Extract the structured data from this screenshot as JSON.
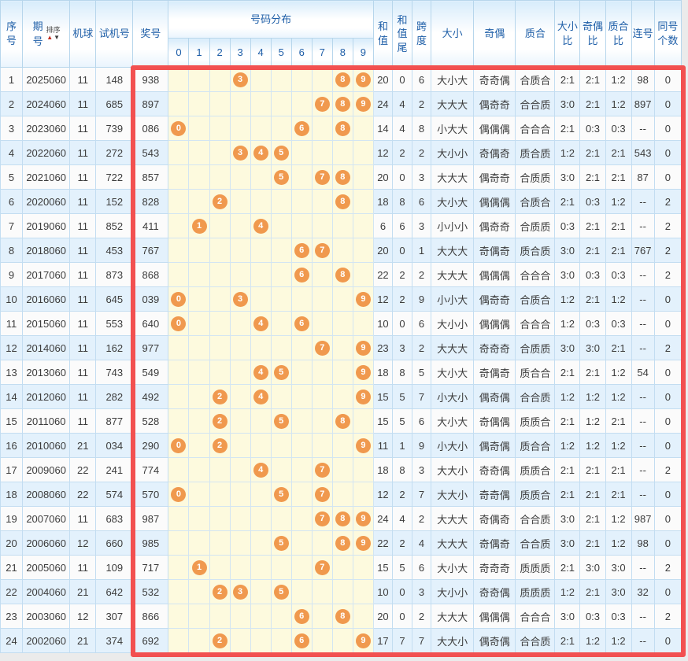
{
  "colors": {
    "accent_red_frame": "#f25050",
    "ball_orange": "#f0994e",
    "header_text_blue": "#1f5fa8",
    "row_alt_blue": "#e3f1fc",
    "digit_cell_yellow": "#fdfade"
  },
  "table": {
    "headers": {
      "seq": "序号",
      "period": "期号",
      "sort_label": "排序",
      "sort_up": "▲",
      "sort_down": "▼",
      "machine": "机球",
      "test": "试机号",
      "prize": "奖号",
      "distribution": "号码分布",
      "digits": [
        "0",
        "1",
        "2",
        "3",
        "4",
        "5",
        "6",
        "7",
        "8",
        "9"
      ],
      "sum": "和值",
      "sum_tail": "和值尾",
      "span": "跨度",
      "size": "大小",
      "parity": "奇偶",
      "prime": "质合",
      "size_ratio": "大小比",
      "parity_ratio": "奇偶比",
      "prime_ratio": "质合比",
      "consecutive": "连号",
      "same_count": "同号个数"
    },
    "rows": [
      {
        "seq": "1",
        "period": "2025060",
        "machine": "11",
        "test": "148",
        "prize": "938",
        "balls": [
          3,
          8,
          9
        ],
        "sum": "20",
        "sum_tail": "0",
        "span": "6",
        "size": "大小大",
        "parity": "奇奇偶",
        "prime": "合质合",
        "size_ratio": "2:1",
        "parity_ratio": "2:1",
        "prime_ratio": "1:2",
        "consecutive": "98",
        "same_count": "0"
      },
      {
        "seq": "2",
        "period": "2024060",
        "machine": "11",
        "test": "685",
        "prize": "897",
        "balls": [
          7,
          8,
          9
        ],
        "sum": "24",
        "sum_tail": "4",
        "span": "2",
        "size": "大大大",
        "parity": "偶奇奇",
        "prime": "合合质",
        "size_ratio": "3:0",
        "parity_ratio": "2:1",
        "prime_ratio": "1:2",
        "consecutive": "897",
        "same_count": "0"
      },
      {
        "seq": "3",
        "period": "2023060",
        "machine": "11",
        "test": "739",
        "prize": "086",
        "balls": [
          0,
          6,
          8
        ],
        "sum": "14",
        "sum_tail": "4",
        "span": "8",
        "size": "小大大",
        "parity": "偶偶偶",
        "prime": "合合合",
        "size_ratio": "2:1",
        "parity_ratio": "0:3",
        "prime_ratio": "0:3",
        "consecutive": "--",
        "same_count": "0"
      },
      {
        "seq": "4",
        "period": "2022060",
        "machine": "11",
        "test": "272",
        "prize": "543",
        "balls": [
          3,
          4,
          5
        ],
        "sum": "12",
        "sum_tail": "2",
        "span": "2",
        "size": "大小小",
        "parity": "奇偶奇",
        "prime": "质合质",
        "size_ratio": "1:2",
        "parity_ratio": "2:1",
        "prime_ratio": "2:1",
        "consecutive": "543",
        "same_count": "0"
      },
      {
        "seq": "5",
        "period": "2021060",
        "machine": "11",
        "test": "722",
        "prize": "857",
        "balls": [
          5,
          7,
          8
        ],
        "sum": "20",
        "sum_tail": "0",
        "span": "3",
        "size": "大大大",
        "parity": "偶奇奇",
        "prime": "合质质",
        "size_ratio": "3:0",
        "parity_ratio": "2:1",
        "prime_ratio": "2:1",
        "consecutive": "87",
        "same_count": "0"
      },
      {
        "seq": "6",
        "period": "2020060",
        "machine": "11",
        "test": "152",
        "prize": "828",
        "balls": [
          2,
          8
        ],
        "sum": "18",
        "sum_tail": "8",
        "span": "6",
        "size": "大小大",
        "parity": "偶偶偶",
        "prime": "合质合",
        "size_ratio": "2:1",
        "parity_ratio": "0:3",
        "prime_ratio": "1:2",
        "consecutive": "--",
        "same_count": "2"
      },
      {
        "seq": "7",
        "period": "2019060",
        "machine": "11",
        "test": "852",
        "prize": "411",
        "balls": [
          1,
          4
        ],
        "sum": "6",
        "sum_tail": "6",
        "span": "3",
        "size": "小小小",
        "parity": "偶奇奇",
        "prime": "合质质",
        "size_ratio": "0:3",
        "parity_ratio": "2:1",
        "prime_ratio": "2:1",
        "consecutive": "--",
        "same_count": "2"
      },
      {
        "seq": "8",
        "period": "2018060",
        "machine": "11",
        "test": "453",
        "prize": "767",
        "balls": [
          6,
          7
        ],
        "sum": "20",
        "sum_tail": "0",
        "span": "1",
        "size": "大大大",
        "parity": "奇偶奇",
        "prime": "质合质",
        "size_ratio": "3:0",
        "parity_ratio": "2:1",
        "prime_ratio": "2:1",
        "consecutive": "767",
        "same_count": "2"
      },
      {
        "seq": "9",
        "period": "2017060",
        "machine": "11",
        "test": "873",
        "prize": "868",
        "balls": [
          6,
          8
        ],
        "sum": "22",
        "sum_tail": "2",
        "span": "2",
        "size": "大大大",
        "parity": "偶偶偶",
        "prime": "合合合",
        "size_ratio": "3:0",
        "parity_ratio": "0:3",
        "prime_ratio": "0:3",
        "consecutive": "--",
        "same_count": "2"
      },
      {
        "seq": "10",
        "period": "2016060",
        "machine": "11",
        "test": "645",
        "prize": "039",
        "balls": [
          0,
          3,
          9
        ],
        "sum": "12",
        "sum_tail": "2",
        "span": "9",
        "size": "小小大",
        "parity": "偶奇奇",
        "prime": "合质合",
        "size_ratio": "1:2",
        "parity_ratio": "2:1",
        "prime_ratio": "1:2",
        "consecutive": "--",
        "same_count": "0"
      },
      {
        "seq": "11",
        "period": "2015060",
        "machine": "11",
        "test": "553",
        "prize": "640",
        "balls": [
          0,
          4,
          6
        ],
        "sum": "10",
        "sum_tail": "0",
        "span": "6",
        "size": "大小小",
        "parity": "偶偶偶",
        "prime": "合合合",
        "size_ratio": "1:2",
        "parity_ratio": "0:3",
        "prime_ratio": "0:3",
        "consecutive": "--",
        "same_count": "0"
      },
      {
        "seq": "12",
        "period": "2014060",
        "machine": "11",
        "test": "162",
        "prize": "977",
        "balls": [
          7,
          9
        ],
        "sum": "23",
        "sum_tail": "3",
        "span": "2",
        "size": "大大大",
        "parity": "奇奇奇",
        "prime": "合质质",
        "size_ratio": "3:0",
        "parity_ratio": "3:0",
        "prime_ratio": "2:1",
        "consecutive": "--",
        "same_count": "2"
      },
      {
        "seq": "13",
        "period": "2013060",
        "machine": "11",
        "test": "743",
        "prize": "549",
        "balls": [
          4,
          5,
          9
        ],
        "sum": "18",
        "sum_tail": "8",
        "span": "5",
        "size": "大小大",
        "parity": "奇偶奇",
        "prime": "质合合",
        "size_ratio": "2:1",
        "parity_ratio": "2:1",
        "prime_ratio": "1:2",
        "consecutive": "54",
        "same_count": "0"
      },
      {
        "seq": "14",
        "period": "2012060",
        "machine": "11",
        "test": "282",
        "prize": "492",
        "balls": [
          2,
          4,
          9
        ],
        "sum": "15",
        "sum_tail": "5",
        "span": "7",
        "size": "小大小",
        "parity": "偶奇偶",
        "prime": "合合质",
        "size_ratio": "1:2",
        "parity_ratio": "1:2",
        "prime_ratio": "1:2",
        "consecutive": "--",
        "same_count": "0"
      },
      {
        "seq": "15",
        "period": "2011060",
        "machine": "11",
        "test": "877",
        "prize": "528",
        "balls": [
          2,
          5,
          8
        ],
        "sum": "15",
        "sum_tail": "5",
        "span": "6",
        "size": "大小大",
        "parity": "奇偶偶",
        "prime": "质质合",
        "size_ratio": "2:1",
        "parity_ratio": "1:2",
        "prime_ratio": "2:1",
        "consecutive": "--",
        "same_count": "0"
      },
      {
        "seq": "16",
        "period": "2010060",
        "machine": "21",
        "test": "034",
        "prize": "290",
        "balls": [
          0,
          2,
          9
        ],
        "sum": "11",
        "sum_tail": "1",
        "span": "9",
        "size": "小大小",
        "parity": "偶奇偶",
        "prime": "质合合",
        "size_ratio": "1:2",
        "parity_ratio": "1:2",
        "prime_ratio": "1:2",
        "consecutive": "--",
        "same_count": "0"
      },
      {
        "seq": "17",
        "period": "2009060",
        "machine": "22",
        "test": "241",
        "prize": "774",
        "balls": [
          4,
          7
        ],
        "sum": "18",
        "sum_tail": "8",
        "span": "3",
        "size": "大大小",
        "parity": "奇奇偶",
        "prime": "质质合",
        "size_ratio": "2:1",
        "parity_ratio": "2:1",
        "prime_ratio": "2:1",
        "consecutive": "--",
        "same_count": "2"
      },
      {
        "seq": "18",
        "period": "2008060",
        "machine": "22",
        "test": "574",
        "prize": "570",
        "balls": [
          0,
          5,
          7
        ],
        "sum": "12",
        "sum_tail": "2",
        "span": "7",
        "size": "大大小",
        "parity": "奇奇偶",
        "prime": "质质合",
        "size_ratio": "2:1",
        "parity_ratio": "2:1",
        "prime_ratio": "2:1",
        "consecutive": "--",
        "same_count": "0"
      },
      {
        "seq": "19",
        "period": "2007060",
        "machine": "11",
        "test": "683",
        "prize": "987",
        "balls": [
          7,
          8,
          9
        ],
        "sum": "24",
        "sum_tail": "4",
        "span": "2",
        "size": "大大大",
        "parity": "奇偶奇",
        "prime": "合合质",
        "size_ratio": "3:0",
        "parity_ratio": "2:1",
        "prime_ratio": "1:2",
        "consecutive": "987",
        "same_count": "0"
      },
      {
        "seq": "20",
        "period": "2006060",
        "machine": "12",
        "test": "660",
        "prize": "985",
        "balls": [
          5,
          8,
          9
        ],
        "sum": "22",
        "sum_tail": "2",
        "span": "4",
        "size": "大大大",
        "parity": "奇偶奇",
        "prime": "合合质",
        "size_ratio": "3:0",
        "parity_ratio": "2:1",
        "prime_ratio": "1:2",
        "consecutive": "98",
        "same_count": "0"
      },
      {
        "seq": "21",
        "period": "2005060",
        "machine": "11",
        "test": "109",
        "prize": "717",
        "balls": [
          1,
          7
        ],
        "sum": "15",
        "sum_tail": "5",
        "span": "6",
        "size": "大小大",
        "parity": "奇奇奇",
        "prime": "质质质",
        "size_ratio": "2:1",
        "parity_ratio": "3:0",
        "prime_ratio": "3:0",
        "consecutive": "--",
        "same_count": "2"
      },
      {
        "seq": "22",
        "period": "2004060",
        "machine": "21",
        "test": "642",
        "prize": "532",
        "balls": [
          2,
          3,
          5
        ],
        "sum": "10",
        "sum_tail": "0",
        "span": "3",
        "size": "大小小",
        "parity": "奇奇偶",
        "prime": "质质质",
        "size_ratio": "1:2",
        "parity_ratio": "2:1",
        "prime_ratio": "3:0",
        "consecutive": "32",
        "same_count": "0"
      },
      {
        "seq": "23",
        "period": "2003060",
        "machine": "12",
        "test": "307",
        "prize": "866",
        "balls": [
          6,
          8
        ],
        "sum": "20",
        "sum_tail": "0",
        "span": "2",
        "size": "大大大",
        "parity": "偶偶偶",
        "prime": "合合合",
        "size_ratio": "3:0",
        "parity_ratio": "0:3",
        "prime_ratio": "0:3",
        "consecutive": "--",
        "same_count": "2"
      },
      {
        "seq": "24",
        "period": "2002060",
        "machine": "21",
        "test": "374",
        "prize": "692",
        "balls": [
          2,
          6,
          9
        ],
        "sum": "17",
        "sum_tail": "7",
        "span": "7",
        "size": "大大小",
        "parity": "偶奇偶",
        "prime": "合合质",
        "size_ratio": "2:1",
        "parity_ratio": "1:2",
        "prime_ratio": "1:2",
        "consecutive": "--",
        "same_count": "0"
      }
    ]
  }
}
